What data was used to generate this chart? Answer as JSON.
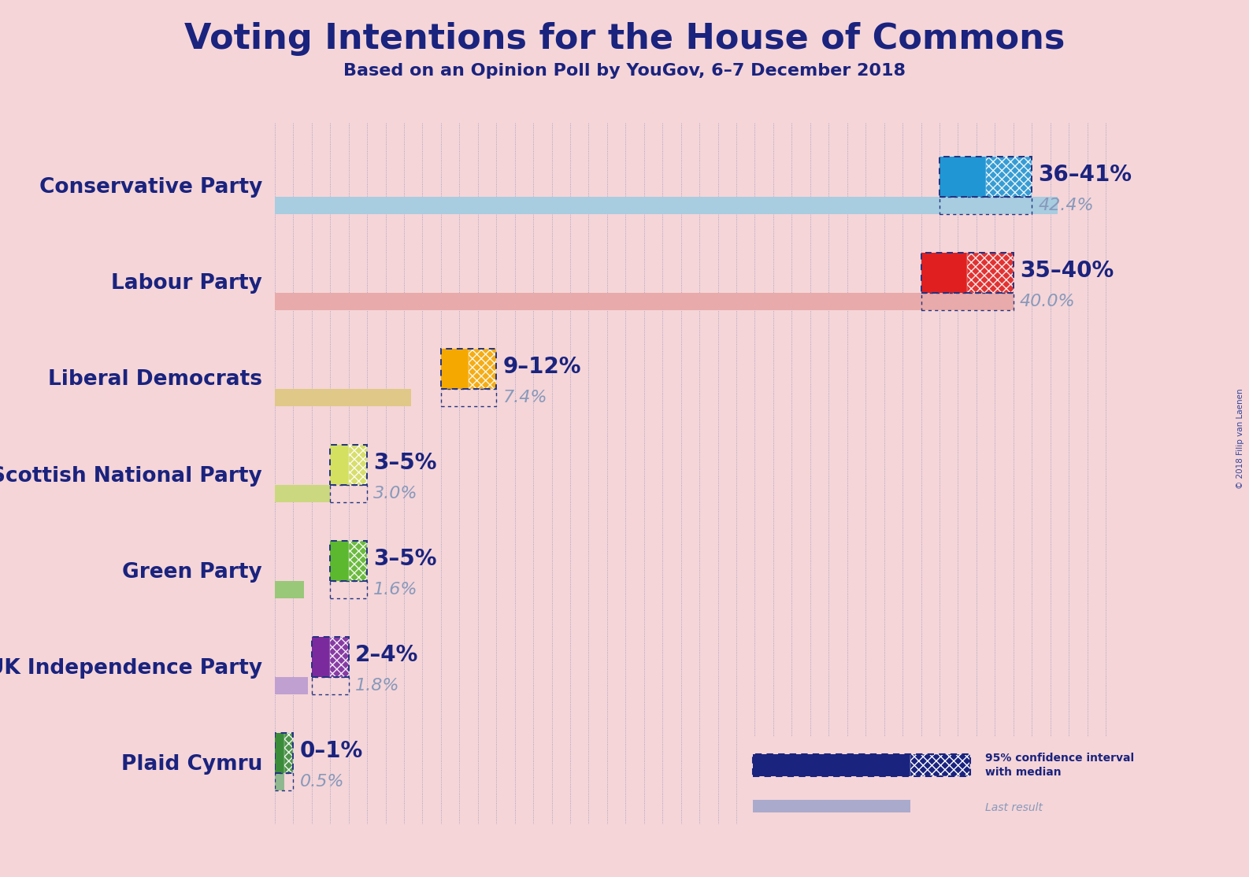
{
  "title": "Voting Intentions for the House of Commons",
  "subtitle": "Based on an Opinion Poll by YouGov, 6–7 December 2018",
  "copyright": "© 2018 Filip van Laenen",
  "background_color": "#f5d5d8",
  "parties": [
    "Conservative Party",
    "Labour Party",
    "Liberal Democrats",
    "Scottish National Party",
    "Green Party",
    "UK Independence Party",
    "Plaid Cymru"
  ],
  "median_values": [
    38.5,
    37.5,
    10.5,
    4.0,
    4.0,
    3.0,
    0.5
  ],
  "ci_low": [
    36,
    35,
    9,
    3,
    3,
    2,
    0
  ],
  "ci_high": [
    41,
    40,
    12,
    5,
    5,
    4,
    1
  ],
  "last_results": [
    42.4,
    40.0,
    7.4,
    3.0,
    1.6,
    1.8,
    0.5
  ],
  "ci_labels": [
    "36–41%",
    "35–40%",
    "9–12%",
    "3–5%",
    "3–5%",
    "2–4%",
    "0–1%"
  ],
  "bar_colors": [
    "#2196d4",
    "#e02020",
    "#f5a800",
    "#d4e060",
    "#5cb82e",
    "#7b2a9e",
    "#3a8c3a"
  ],
  "last_result_colors": [
    "#a8cce0",
    "#e8aaaa",
    "#e0c888",
    "#ccd880",
    "#98c878",
    "#c0a0d0",
    "#90b890"
  ],
  "title_color": "#1a237e",
  "label_color": "#1a237e",
  "subtitle_color": "#1a237e",
  "ci_label_fontsize": 20,
  "last_result_fontsize": 16,
  "party_label_fontsize": 19,
  "title_fontsize": 32,
  "subtitle_fontsize": 16,
  "xlim": [
    0,
    46
  ]
}
